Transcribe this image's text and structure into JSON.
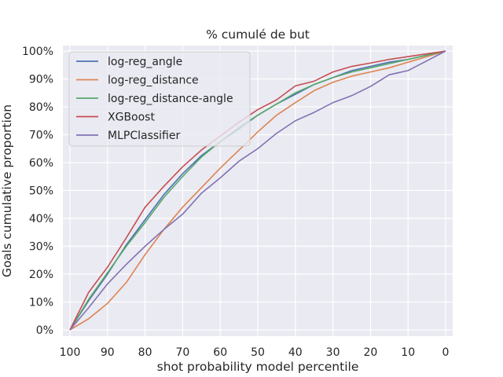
{
  "chart_data": {
    "type": "line",
    "title": "% cumulé de but",
    "xlabel": "shot probability model percentile",
    "ylabel": "Goals cumulative proportion",
    "xlim": [
      100,
      0
    ],
    "ylim": [
      0,
      1
    ],
    "x_reversed": true,
    "x_ticks": [
      {
        "value": 100,
        "label": "100"
      },
      {
        "value": 90,
        "label": "90"
      },
      {
        "value": 80,
        "label": "80"
      },
      {
        "value": 70,
        "label": "70"
      },
      {
        "value": 60,
        "label": "60"
      },
      {
        "value": 50,
        "label": "50"
      },
      {
        "value": 40,
        "label": "40"
      },
      {
        "value": 30,
        "label": "30"
      },
      {
        "value": 20,
        "label": "20"
      },
      {
        "value": 10,
        "label": "10"
      },
      {
        "value": 0,
        "label": "0"
      }
    ],
    "y_ticks": [
      {
        "value": 0.0,
        "label": "0%"
      },
      {
        "value": 0.1,
        "label": "10%"
      },
      {
        "value": 0.2,
        "label": "20%"
      },
      {
        "value": 0.3,
        "label": "30%"
      },
      {
        "value": 0.4,
        "label": "40%"
      },
      {
        "value": 0.5,
        "label": "50%"
      },
      {
        "value": 0.6,
        "label": "60%"
      },
      {
        "value": 0.7,
        "label": "70%"
      },
      {
        "value": 0.8,
        "label": "80%"
      },
      {
        "value": 0.9,
        "label": "90%"
      },
      {
        "value": 1.0,
        "label": "100%"
      }
    ],
    "grid": true,
    "legend_position": "top-left",
    "background": "#eaeaf2",
    "x": [
      100,
      95,
      90,
      85,
      80,
      75,
      70,
      65,
      60,
      55,
      50,
      45,
      40,
      35,
      30,
      25,
      20,
      15,
      10,
      5,
      0
    ],
    "series": [
      {
        "name": "log-reg_angle",
        "color": "#4c72b0",
        "values": [
          0.0,
          0.105,
          0.2,
          0.305,
          0.395,
          0.485,
          0.56,
          0.625,
          0.675,
          0.725,
          0.77,
          0.81,
          0.845,
          0.88,
          0.905,
          0.93,
          0.945,
          0.96,
          0.97,
          0.985,
          1.0
        ]
      },
      {
        "name": "log-reg_distance",
        "color": "#dd8452",
        "values": [
          0.0,
          0.04,
          0.095,
          0.17,
          0.27,
          0.36,
          0.44,
          0.51,
          0.58,
          0.645,
          0.71,
          0.77,
          0.815,
          0.858,
          0.888,
          0.91,
          0.925,
          0.94,
          0.96,
          0.98,
          1.0
        ]
      },
      {
        "name": "log-reg_distance-angle",
        "color": "#55a868",
        "values": [
          0.0,
          0.11,
          0.205,
          0.3,
          0.385,
          0.475,
          0.55,
          0.62,
          0.675,
          0.72,
          0.77,
          0.81,
          0.85,
          0.88,
          0.905,
          0.925,
          0.94,
          0.955,
          0.97,
          0.985,
          1.0
        ]
      },
      {
        "name": "XGBoost",
        "color": "#c44e52",
        "values": [
          0.0,
          0.135,
          0.225,
          0.33,
          0.44,
          0.515,
          0.585,
          0.645,
          0.695,
          0.745,
          0.79,
          0.825,
          0.875,
          0.892,
          0.925,
          0.945,
          0.957,
          0.97,
          0.98,
          0.99,
          1.0
        ]
      },
      {
        "name": "MLPClassifier",
        "color": "#8172b3",
        "values": [
          0.0,
          0.08,
          0.165,
          0.235,
          0.3,
          0.36,
          0.415,
          0.49,
          0.545,
          0.605,
          0.65,
          0.705,
          0.75,
          0.78,
          0.815,
          0.84,
          0.873,
          0.915,
          0.93,
          0.965,
          1.0
        ]
      }
    ]
  }
}
